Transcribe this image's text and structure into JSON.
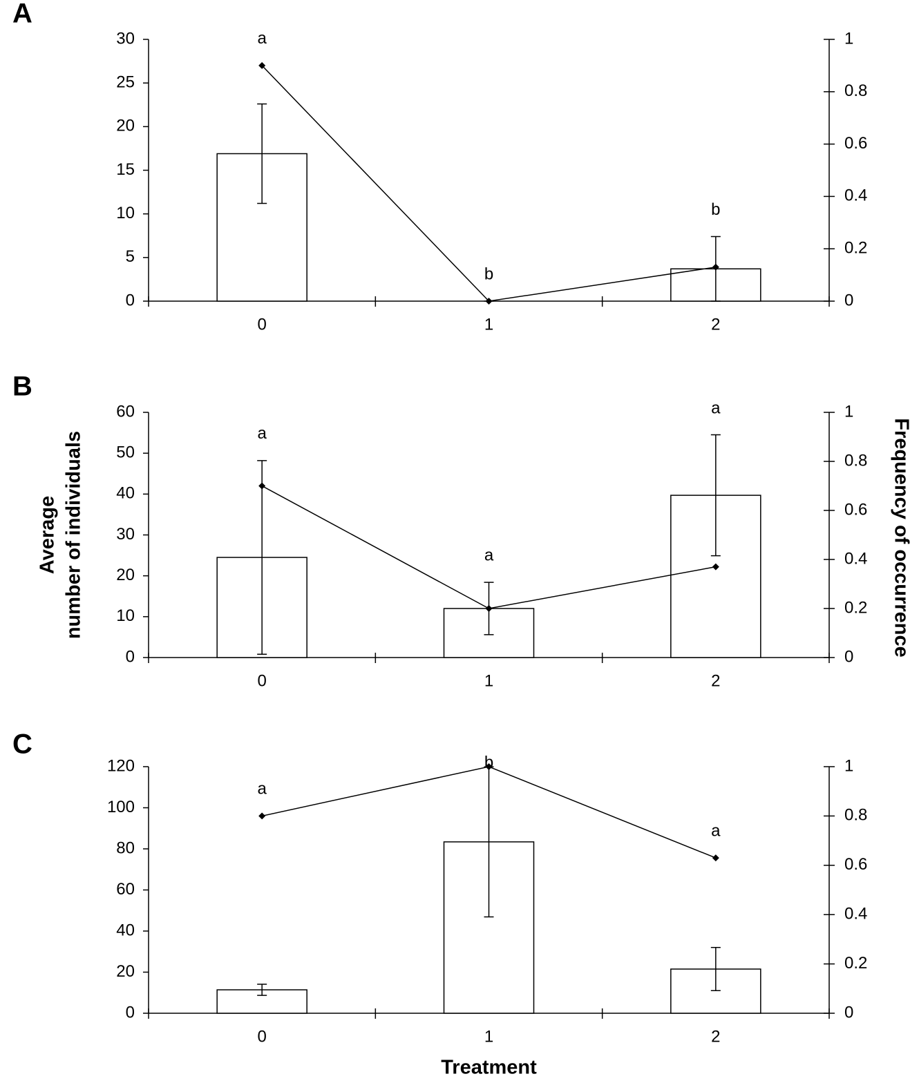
{
  "chart_data": [
    {
      "type": "bar",
      "panel": "A",
      "categories": [
        "0",
        "1",
        "2"
      ],
      "series": [
        {
          "type": "bar",
          "color": "#ffffff",
          "values": [
            16.9,
            0,
            3.7
          ],
          "errors": [
            5.7,
            0,
            3.7
          ]
        },
        {
          "type": "line",
          "color": "#000000",
          "axis": "y2",
          "values": [
            0.9,
            0,
            0.13
          ]
        }
      ],
      "letters": [
        "a",
        "b",
        "b"
      ],
      "ylim": [
        0,
        30
      ],
      "yticks": [
        0,
        5,
        10,
        15,
        20,
        25,
        30
      ],
      "y2lim": [
        0,
        1
      ],
      "y2ticks": [
        0,
        0.2,
        0.4,
        0.6,
        0.8,
        1
      ]
    },
    {
      "type": "bar",
      "panel": "B",
      "categories": [
        "0",
        "1",
        "2"
      ],
      "series": [
        {
          "type": "bar",
          "color": "#ffffff",
          "values": [
            24.5,
            12.0,
            39.7
          ],
          "errors": [
            23.7,
            6.4,
            14.8
          ]
        },
        {
          "type": "line",
          "color": "#000000",
          "axis": "y2",
          "values": [
            0.7,
            0.2,
            0.37
          ]
        }
      ],
      "letters": [
        "a",
        "a",
        "a"
      ],
      "ylabel": [
        "Average",
        "number of individuals"
      ],
      "y2label": "Frequency of occurrence",
      "ylim": [
        0,
        60
      ],
      "yticks": [
        0,
        10,
        20,
        30,
        40,
        50,
        60
      ],
      "y2lim": [
        0,
        1
      ],
      "y2ticks": [
        0,
        0.2,
        0.4,
        0.6,
        0.8,
        1
      ]
    },
    {
      "type": "bar",
      "panel": "C",
      "categories": [
        "0",
        "1",
        "2"
      ],
      "series": [
        {
          "type": "bar",
          "color": "#ffffff",
          "values": [
            11.4,
            83.4,
            21.5
          ],
          "errors": [
            2.7,
            36.5,
            10.5
          ]
        },
        {
          "type": "line",
          "color": "#000000",
          "axis": "y2",
          "values": [
            0.8,
            1.0,
            0.63
          ]
        }
      ],
      "letters": [
        "a",
        "b",
        "a"
      ],
      "xlabel": "Treatment",
      "ylim": [
        0,
        120
      ],
      "yticks": [
        0,
        20,
        40,
        60,
        80,
        100,
        120
      ],
      "y2lim": [
        0,
        1
      ],
      "y2ticks": [
        0,
        0.2,
        0.4,
        0.6,
        0.8,
        1
      ]
    }
  ]
}
